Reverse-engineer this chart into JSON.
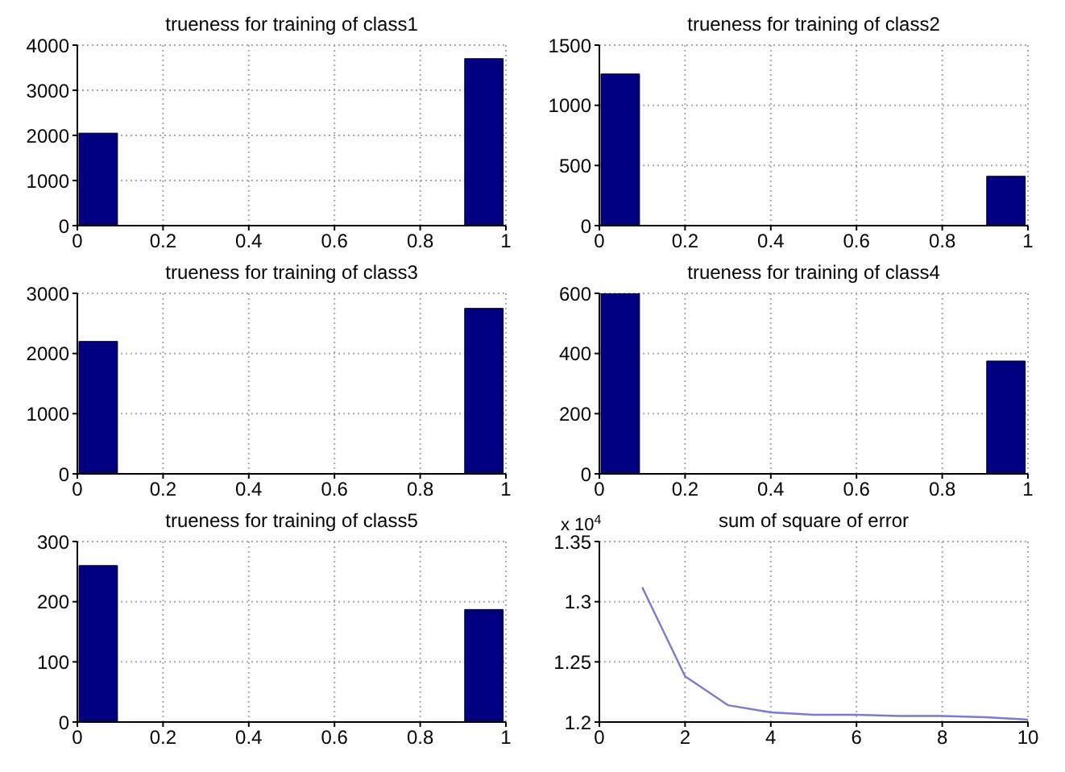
{
  "chart_data": [
    {
      "type": "histogram",
      "title": "trueness for training of class1",
      "bins": [
        0,
        0.1,
        0.2,
        0.3,
        0.4,
        0.5,
        0.6,
        0.7,
        0.8,
        0.9,
        1
      ],
      "values": [
        2050,
        0,
        0,
        0,
        0,
        0,
        0,
        0,
        0,
        3700
      ],
      "color": "#000080",
      "xlim": [
        0,
        1
      ],
      "xticks": [
        0,
        0.2,
        0.4,
        0.6,
        0.8,
        1
      ],
      "ylim": [
        0,
        4000
      ],
      "yticks": [
        0,
        1000,
        2000,
        3000,
        4000
      ],
      "grid": true
    },
    {
      "type": "histogram",
      "title": "trueness for training of class2",
      "bins": [
        0,
        0.1,
        0.2,
        0.3,
        0.4,
        0.5,
        0.6,
        0.7,
        0.8,
        0.9,
        1
      ],
      "values": [
        1260,
        0,
        0,
        0,
        0,
        0,
        0,
        0,
        0,
        410
      ],
      "color": "#000080",
      "xlim": [
        0,
        1
      ],
      "xticks": [
        0,
        0.2,
        0.4,
        0.6,
        0.8,
        1
      ],
      "ylim": [
        0,
        1500
      ],
      "yticks": [
        0,
        500,
        1000,
        1500
      ],
      "grid": true
    },
    {
      "type": "histogram",
      "title": "trueness for training of class3",
      "bins": [
        0,
        0.1,
        0.2,
        0.3,
        0.4,
        0.5,
        0.6,
        0.7,
        0.8,
        0.9,
        1
      ],
      "values": [
        2200,
        0,
        0,
        0,
        0,
        0,
        0,
        0,
        0,
        2750
      ],
      "color": "#000080",
      "xlim": [
        0,
        1
      ],
      "xticks": [
        0,
        0.2,
        0.4,
        0.6,
        0.8,
        1
      ],
      "ylim": [
        0,
        3000
      ],
      "yticks": [
        0,
        1000,
        2000,
        3000
      ],
      "grid": true
    },
    {
      "type": "histogram",
      "title": "trueness for training of class4",
      "bins": [
        0,
        0.1,
        0.2,
        0.3,
        0.4,
        0.5,
        0.6,
        0.7,
        0.8,
        0.9,
        1
      ],
      "values": [
        600,
        0,
        0,
        0,
        0,
        0,
        0,
        0,
        0,
        375
      ],
      "color": "#000080",
      "xlim": [
        0,
        1
      ],
      "xticks": [
        0,
        0.2,
        0.4,
        0.6,
        0.8,
        1
      ],
      "ylim": [
        0,
        600
      ],
      "yticks": [
        0,
        200,
        400,
        600
      ],
      "grid": true
    },
    {
      "type": "histogram",
      "title": "trueness for training of class5",
      "bins": [
        0,
        0.1,
        0.2,
        0.3,
        0.4,
        0.5,
        0.6,
        0.7,
        0.8,
        0.9,
        1
      ],
      "values": [
        260,
        0,
        0,
        0,
        0,
        0,
        0,
        0,
        0,
        187
      ],
      "color": "#000080",
      "xlim": [
        0,
        1
      ],
      "xticks": [
        0,
        0.2,
        0.4,
        0.6,
        0.8,
        1
      ],
      "ylim": [
        0,
        300
      ],
      "yticks": [
        0,
        100,
        200,
        300
      ],
      "grid": true
    },
    {
      "type": "line",
      "title": "sum of square of error",
      "x": [
        1,
        2,
        3,
        4,
        5,
        6,
        7,
        8,
        9,
        10
      ],
      "values": [
        1.312,
        1.238,
        1.214,
        1.208,
        1.206,
        1.206,
        1.205,
        1.205,
        1.204,
        1.202
      ],
      "color": "#7b7bd0",
      "xlim": [
        0,
        10
      ],
      "xticks": [
        0,
        2,
        4,
        6,
        8,
        10
      ],
      "ylim": [
        1.2,
        1.35
      ],
      "yticks": [
        1.2,
        1.25,
        1.3,
        1.35
      ],
      "grid": true,
      "annotations": [
        "x 10$^{4}$"
      ]
    }
  ]
}
